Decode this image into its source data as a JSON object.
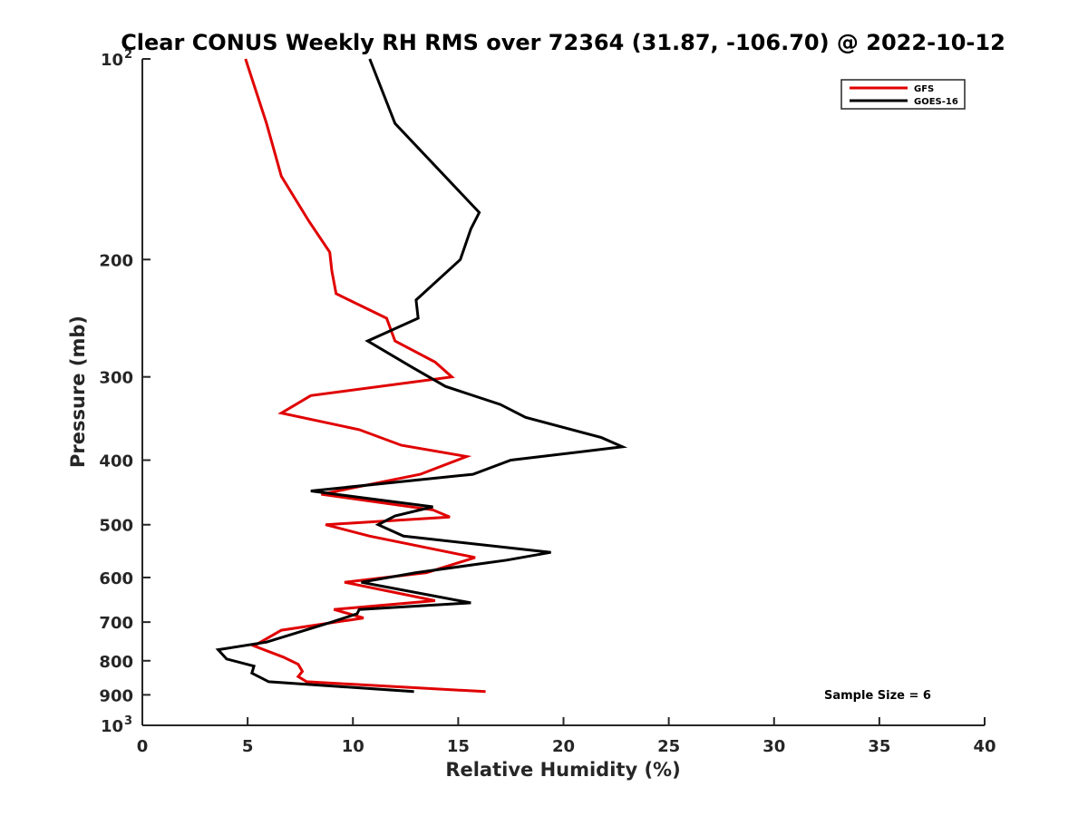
{
  "chart_data": {
    "type": "line",
    "title": "Clear CONUS Weekly RH RMS over 72364 (31.87, -106.70) @ 2022-10-12",
    "xlabel": "Relative Humidity (%)",
    "ylabel": "Pressure (mb)",
    "xlim": [
      0,
      40
    ],
    "ylim": [
      100,
      1000
    ],
    "y_scale": "log",
    "y_inverted": true,
    "x_ticks": [
      0,
      5,
      10,
      15,
      20,
      25,
      30,
      35,
      40
    ],
    "y_ticks": [
      {
        "value": 100,
        "label": "10",
        "exp": "2"
      },
      {
        "value": 200,
        "label": "200"
      },
      {
        "value": 300,
        "label": "300"
      },
      {
        "value": 400,
        "label": "400"
      },
      {
        "value": 500,
        "label": "500"
      },
      {
        "value": 600,
        "label": "600"
      },
      {
        "value": 700,
        "label": "700"
      },
      {
        "value": 800,
        "label": "800"
      },
      {
        "value": 900,
        "label": "900"
      },
      {
        "value": 1000,
        "label": "10",
        "exp": "3"
      }
    ],
    "grid": false,
    "legend_position": "top-right",
    "series": [
      {
        "name": "GFS",
        "color": "#e00000",
        "points": [
          [
            4.9,
            100
          ],
          [
            5.9,
            125
          ],
          [
            6.6,
            150
          ],
          [
            7.9,
            175
          ],
          [
            8.9,
            195
          ],
          [
            9.0,
            208
          ],
          [
            9.2,
            225
          ],
          [
            11.6,
            245
          ],
          [
            12.0,
            265
          ],
          [
            13.9,
            285
          ],
          [
            14.7,
            300
          ],
          [
            8.0,
            320
          ],
          [
            6.6,
            340
          ],
          [
            10.3,
            360
          ],
          [
            12.3,
            380
          ],
          [
            15.4,
            395
          ],
          [
            13.2,
            420
          ],
          [
            8.5,
            450
          ],
          [
            13.8,
            475
          ],
          [
            14.6,
            487
          ],
          [
            8.7,
            500
          ],
          [
            10.8,
            520
          ],
          [
            15.8,
            560
          ],
          [
            13.5,
            590
          ],
          [
            9.6,
            610
          ],
          [
            13.9,
            650
          ],
          [
            9.1,
            670
          ],
          [
            10.5,
            690
          ],
          [
            6.6,
            720
          ],
          [
            5.3,
            760
          ],
          [
            6.7,
            790
          ],
          [
            7.4,
            810
          ],
          [
            7.6,
            830
          ],
          [
            7.4,
            845
          ],
          [
            7.8,
            860
          ],
          [
            16.3,
            890
          ]
        ]
      },
      {
        "name": "GOES-16",
        "color": "#000000",
        "points": [
          [
            10.8,
            100
          ],
          [
            12.0,
            125
          ],
          [
            16.0,
            170
          ],
          [
            15.6,
            180
          ],
          [
            15.1,
            200
          ],
          [
            13.0,
            230
          ],
          [
            13.1,
            245
          ],
          [
            10.7,
            265
          ],
          [
            12.8,
            290
          ],
          [
            14.4,
            310
          ],
          [
            17.0,
            330
          ],
          [
            18.2,
            345
          ],
          [
            21.8,
            370
          ],
          [
            22.8,
            382
          ],
          [
            17.5,
            400
          ],
          [
            15.7,
            420
          ],
          [
            8.0,
            445
          ],
          [
            13.8,
            470
          ],
          [
            12.0,
            485
          ],
          [
            11.2,
            500
          ],
          [
            12.4,
            520
          ],
          [
            19.4,
            550
          ],
          [
            17.3,
            565
          ],
          [
            13.0,
            590
          ],
          [
            10.4,
            610
          ],
          [
            13.9,
            640
          ],
          [
            15.6,
            655
          ],
          [
            10.3,
            670
          ],
          [
            10.2,
            680
          ],
          [
            9.0,
            700
          ],
          [
            5.9,
            750
          ],
          [
            3.6,
            770
          ],
          [
            4.0,
            795
          ],
          [
            5.3,
            815
          ],
          [
            5.2,
            835
          ],
          [
            6.0,
            860
          ],
          [
            12.9,
            890
          ]
        ]
      }
    ],
    "annotations": [
      "Sample Size = 6"
    ]
  }
}
